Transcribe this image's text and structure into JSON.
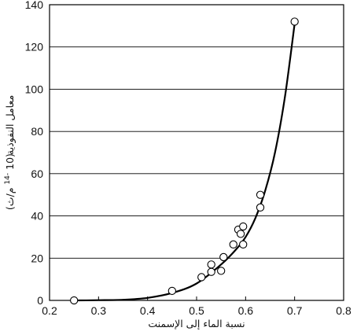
{
  "chart_data": {
    "type": "scatter",
    "xlabel": "نسبة الماء إلى الإسمنت",
    "ylabel": {
      "main": "معامل النفوذية",
      "unit_prefix": "(10",
      "unit_exp": "-14",
      "unit_suffix": " م/ث)"
    },
    "xlim": [
      0.2,
      0.8
    ],
    "ylim": [
      0,
      140
    ],
    "x_ticks": [
      "0.2",
      "0.3",
      "0.4",
      "0.5",
      "0.6",
      "0.7",
      "0.8"
    ],
    "y_ticks": [
      "0",
      "20",
      "40",
      "60",
      "80",
      "100",
      "120",
      "140"
    ],
    "grid": "horizontal",
    "series": [
      {
        "points": [
          [
            0.25,
            0
          ],
          [
            0.45,
            4.5
          ],
          [
            0.51,
            11
          ],
          [
            0.53,
            13.5
          ],
          [
            0.53,
            17
          ],
          [
            0.55,
            14
          ],
          [
            0.555,
            20.5
          ],
          [
            0.575,
            26.5
          ],
          [
            0.585,
            33.5
          ],
          [
            0.59,
            31.5
          ],
          [
            0.595,
            35
          ],
          [
            0.595,
            26.5
          ],
          [
            0.63,
            50
          ],
          [
            0.63,
            44
          ],
          [
            0.7,
            132
          ]
        ]
      }
    ],
    "fit_curve": [
      [
        0.25,
        0
      ],
      [
        0.3,
        0.1
      ],
      [
        0.35,
        0.3
      ],
      [
        0.4,
        1.2
      ],
      [
        0.45,
        3.5
      ],
      [
        0.5,
        8
      ],
      [
        0.55,
        17
      ],
      [
        0.58,
        24
      ],
      [
        0.6,
        30
      ],
      [
        0.62,
        39
      ],
      [
        0.64,
        52
      ],
      [
        0.66,
        70
      ],
      [
        0.68,
        96
      ],
      [
        0.7,
        131
      ]
    ]
  }
}
